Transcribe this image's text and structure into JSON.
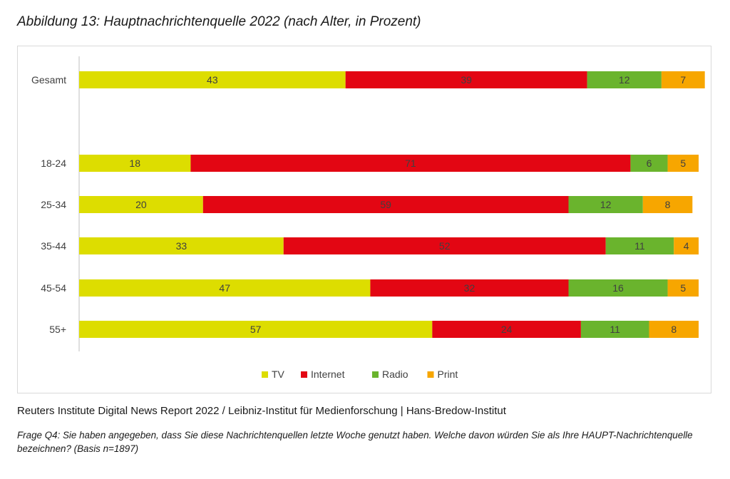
{
  "title": "Abbildung 13: Hauptnachrichtenquelle 2022 (nach Alter, in Prozent)",
  "source": "Reuters Institute Digital News Report 2022 / Leibniz-Institut für Medienforschung | Hans-Bredow-Institut",
  "question": "Frage Q4: Sie haben angegeben, dass Sie diese Nachrichtenquellen letzte Woche genutzt haben. Welche davon würden Sie als Ihre HAUPT-Nachrichtenquelle bezeichnen? (Basis n=1897)",
  "chart_data": {
    "type": "bar",
    "orientation": "horizontal",
    "stacked": true,
    "categories": [
      "Gesamt",
      "18-24",
      "25-34",
      "35-44",
      "45-54",
      "55+"
    ],
    "series": [
      {
        "name": "TV",
        "color": "#dddd00",
        "values": [
          43,
          18,
          20,
          33,
          47,
          57
        ]
      },
      {
        "name": "Internet",
        "color": "#e30613",
        "values": [
          39,
          71,
          59,
          52,
          32,
          24
        ]
      },
      {
        "name": "Radio",
        "color": "#6ab42d",
        "values": [
          12,
          6,
          12,
          11,
          16,
          11
        ]
      },
      {
        "name": "Print",
        "color": "#f7a600",
        "values": [
          7,
          5,
          8,
          4,
          5,
          8
        ]
      }
    ],
    "data_labels": true,
    "xlim": [
      0,
      100
    ],
    "grid": false,
    "legend": "bottom-center"
  }
}
